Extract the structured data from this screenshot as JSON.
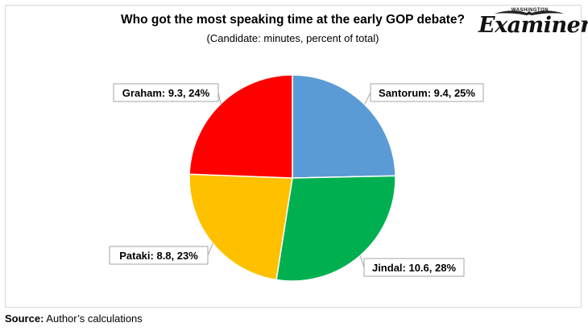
{
  "chart_data": {
    "type": "pie",
    "title": "Who got the most speaking time at the early GOP debate?",
    "subtitle": "(Candidate: minutes, percent of total)",
    "slices": [
      {
        "name": "Santorum",
        "value": 9.4,
        "percent": 25,
        "label": "Santorum: 9.4, 25%",
        "color": "#5b9bd5"
      },
      {
        "name": "Jindal",
        "value": 10.6,
        "percent": 28,
        "label": "Jindal: 10.6, 28%",
        "color": "#00b050"
      },
      {
        "name": "Pataki",
        "value": 8.8,
        "percent": 23,
        "label": "Pataki: 8.8, 23%",
        "color": "#ffc000"
      },
      {
        "name": "Graham",
        "value": 9.3,
        "percent": 24,
        "label": "Graham: 9.3, 24%",
        "color": "#ff0000"
      }
    ],
    "start_angle": "12 o'clock",
    "direction": "clockwise",
    "legend": "none"
  },
  "logo": {
    "small_text": "WASHINGTON",
    "big_text": "Examiner"
  },
  "source": {
    "label": "Source:",
    "text": " Author’s calculations"
  }
}
